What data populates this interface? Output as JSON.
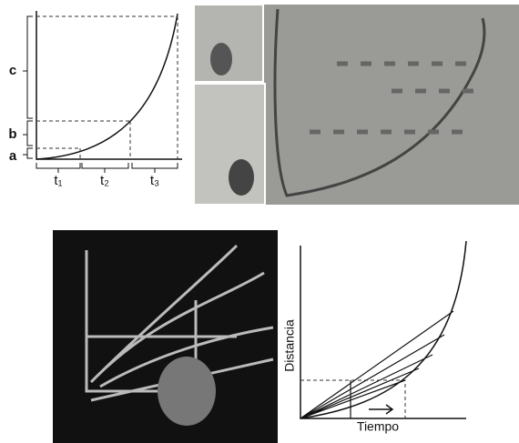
{
  "top_diagram": {
    "labels": [
      "c",
      "b",
      "a"
    ],
    "time_labels": [
      "t₁",
      "t₂",
      "t₃"
    ]
  },
  "bottom_diagram": {
    "y_label": "Distancia",
    "x_label": "Tiempo"
  }
}
